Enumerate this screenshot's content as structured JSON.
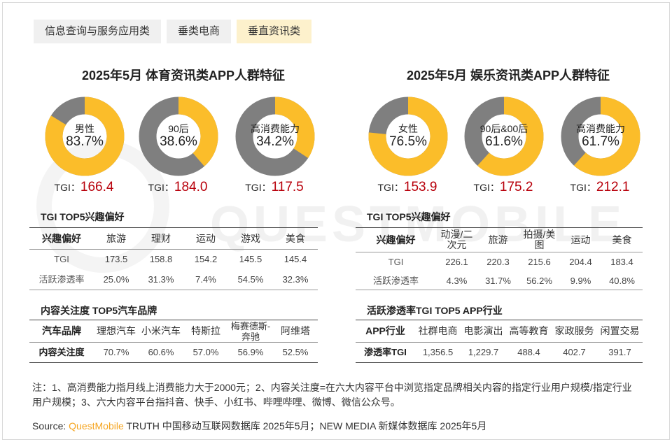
{
  "tabs": [
    {
      "label": "信息查询与服务应用类",
      "active": false
    },
    {
      "label": "垂类电商",
      "active": false
    },
    {
      "label": "垂直资讯类",
      "active": true
    }
  ],
  "colors": {
    "yellow": "#fbbd2a",
    "gray": "#7f7f7f",
    "tgi_red": "#b8000b",
    "tab_active": "#fdf1cc"
  },
  "left_panel": {
    "title": "2025年5月 体育资讯类APP人群特征",
    "tgi_prefix": "TGI：",
    "interest_title": "TGI TOP5兴趣偏好",
    "interest_header": [
      "兴趣偏好",
      "旅游",
      "理财",
      "运动",
      "游戏",
      "美食"
    ],
    "interest_rows": [
      {
        "label": "TGI",
        "values": [
          "173.5",
          "158.8",
          "154.2",
          "145.5",
          "145.4"
        ]
      },
      {
        "label": "活跃渗透率",
        "values": [
          "25.0%",
          "31.3%",
          "7.4%",
          "54.5%",
          "32.3%"
        ]
      }
    ],
    "brand_title": "内容关注度 TOP5汽车品牌",
    "brand_header": [
      "汽车品牌",
      "理想汽车",
      "小米汽车",
      "特斯拉",
      "梅赛德斯-奔驰",
      "阿维塔"
    ],
    "brand_rows": [
      {
        "label": "内容关注度",
        "values": [
          "70.7%",
          "60.6%",
          "57.0%",
          "56.9%",
          "52.5%"
        ]
      }
    ]
  },
  "right_panel": {
    "title": "2025年5月 娱乐资讯类APP人群特征",
    "tgi_prefix": "TGI：",
    "interest_title": "TGI TOP5兴趣偏好",
    "interest_header": [
      "兴趣偏好",
      "动漫/二次元",
      "旅游",
      "拍摄/美图",
      "运动",
      "美食"
    ],
    "interest_rows": [
      {
        "label": "TGI",
        "values": [
          "226.1",
          "220.3",
          "215.6",
          "204.4",
          "183.4"
        ]
      },
      {
        "label": "活跃渗透率",
        "values": [
          "4.3%",
          "31.7%",
          "56.2%",
          "9.9%",
          "40.8%"
        ]
      }
    ],
    "app_title": "活跃渗透率TGI TOP5 APP行业",
    "app_header": [
      "APP行业",
      "社群电商",
      "电影演出",
      "高等教育",
      "家政服务",
      "闲置交易"
    ],
    "app_rows": [
      {
        "label": "渗透率TGI",
        "values": [
          "1,356.5",
          "1,229.7",
          "488.4",
          "402.7",
          "391.7"
        ]
      }
    ]
  },
  "chart_data": [
    {
      "type": "pie",
      "variant": "donut",
      "label": "男性",
      "value_text": "83.7%",
      "value": 83.7,
      "tgi": "166.4"
    },
    {
      "type": "pie",
      "variant": "donut",
      "label": "90后",
      "value_text": "38.6%",
      "value": 38.6,
      "tgi": "184.0"
    },
    {
      "type": "pie",
      "variant": "donut",
      "label": "高消费能力",
      "value_text": "34.2%",
      "value": 34.2,
      "tgi": "117.5"
    },
    {
      "type": "pie",
      "variant": "donut",
      "label": "女性",
      "value_text": "76.5%",
      "value": 76.5,
      "tgi": "153.9"
    },
    {
      "type": "pie",
      "variant": "donut",
      "label": "90后&00后",
      "value_text": "61.6%",
      "value": 61.6,
      "tgi": "175.2"
    },
    {
      "type": "pie",
      "variant": "donut",
      "label": "高消费能力",
      "value_text": "61.7%",
      "value": 61.7,
      "tgi": "212.1"
    }
  ],
  "note": "注：1、高消费能力指月线上消费能力大于2000元；2、内容关注度=在六大内容平台中浏览指定品牌相关内容的指定行业用户规模/指定行业用户规模；3、六大内容平台指抖音、快手、小红书、哔哩哔哩、微博、微信公众号。",
  "source": {
    "prefix": "Source: ",
    "brand": "QuestMobile",
    "text": " TRUTH 中国移动互联网数据库 2025年5月；NEW MEDIA 新媒体数据库 2025年5月"
  },
  "watermark": "QUESTMOBILE"
}
